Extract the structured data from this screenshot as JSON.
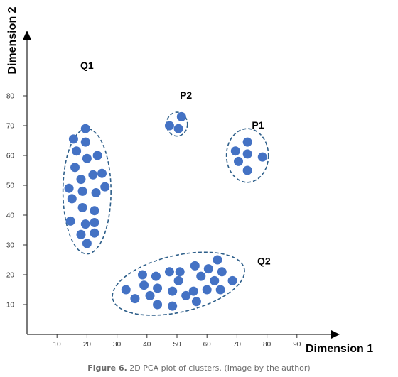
{
  "chart_data": {
    "type": "scatter",
    "xlabel": "Dimension 1",
    "ylabel": "Dimension 2",
    "xlim": [
      0,
      100
    ],
    "ylim": [
      0,
      95
    ],
    "xticks": [
      10,
      20,
      30,
      40,
      50,
      60,
      70,
      80,
      90
    ],
    "yticks": [
      10,
      20,
      30,
      40,
      50,
      60,
      70,
      80
    ],
    "grid": false,
    "colors": {
      "point": "#4472c4",
      "ellipse": "#2e5f8a",
      "axis": "#333333",
      "text": "#000000"
    },
    "clusters": [
      {
        "name": "Q1",
        "label_at": [
          20,
          89
        ],
        "ellipse": {
          "cx": 20,
          "cy": 48,
          "rx": 8,
          "ry": 21
        },
        "points": [
          [
            19.5,
            69
          ],
          [
            15.5,
            65.5
          ],
          [
            19.5,
            64.5
          ],
          [
            16.5,
            61.5
          ],
          [
            20,
            59
          ],
          [
            23.5,
            60
          ],
          [
            16,
            56
          ],
          [
            22,
            53.5
          ],
          [
            25,
            54
          ],
          [
            18,
            52
          ],
          [
            14,
            49
          ],
          [
            18.5,
            48
          ],
          [
            26,
            49.5
          ],
          [
            23,
            47.5
          ],
          [
            15,
            45.5
          ],
          [
            18.5,
            42.5
          ],
          [
            22.5,
            41.5
          ],
          [
            14.5,
            38
          ],
          [
            19.5,
            37
          ],
          [
            22.5,
            37.5
          ],
          [
            18,
            33.5
          ],
          [
            22.5,
            34
          ],
          [
            20,
            30.5
          ]
        ]
      },
      {
        "name": "P2",
        "label_at": [
          53,
          79
        ],
        "ellipse": {
          "cx": 50,
          "cy": 70.5,
          "rx": 3.5,
          "ry": 4
        },
        "points": [
          [
            51.5,
            73
          ],
          [
            47.5,
            70
          ],
          [
            50.5,
            69
          ]
        ]
      },
      {
        "name": "P1",
        "label_at": [
          77,
          69
        ],
        "ellipse": {
          "cx": 73.5,
          "cy": 60,
          "rx": 7,
          "ry": 9
        },
        "points": [
          [
            73.5,
            64.5
          ],
          [
            69.5,
            61.5
          ],
          [
            73.5,
            60.5
          ],
          [
            78.5,
            59.5
          ],
          [
            70.5,
            58
          ],
          [
            73.5,
            55
          ]
        ]
      },
      {
        "name": "Q2",
        "label_at": [
          79,
          23.5
        ],
        "ellipse": {
          "cx": 50.5,
          "cy": 17,
          "rx": 22.5,
          "ry": 9.5,
          "angle": 13
        },
        "points": [
          [
            63.5,
            25
          ],
          [
            56,
            23
          ],
          [
            60.5,
            22
          ],
          [
            47.5,
            21
          ],
          [
            51,
            21
          ],
          [
            65,
            21
          ],
          [
            38.5,
            20
          ],
          [
            43,
            19.5
          ],
          [
            58,
            19.5
          ],
          [
            50.5,
            18
          ],
          [
            62.5,
            18
          ],
          [
            68.5,
            18
          ],
          [
            39,
            16.5
          ],
          [
            43.5,
            15.5
          ],
          [
            48.5,
            14.5
          ],
          [
            55.5,
            14.5
          ],
          [
            60,
            15
          ],
          [
            64.5,
            15
          ],
          [
            33,
            15
          ],
          [
            41,
            13
          ],
          [
            53,
            13
          ],
          [
            36,
            12
          ],
          [
            56.5,
            11
          ],
          [
            43.5,
            10
          ],
          [
            48.5,
            9.5
          ]
        ]
      }
    ]
  },
  "caption": {
    "label": "Figure 6.",
    "text": " 2D PCA plot of clusters. (Image by the author)"
  }
}
